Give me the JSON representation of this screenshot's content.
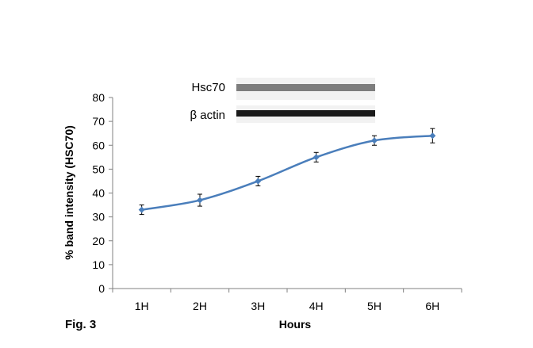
{
  "figure_label": "Fig. 3",
  "blot": {
    "band_labels": [
      "Hsc70",
      "β actin"
    ]
  },
  "colors": {
    "series": "#4a7ebb",
    "marker": "#4a7ebb",
    "axis": "#808080",
    "error_bar": "#000000",
    "blot_band": "#1a1a1a"
  },
  "chart_data": {
    "type": "line",
    "title": "",
    "xlabel": "Hours",
    "ylabel": "% band intensity (HSC70)",
    "categories": [
      "1H",
      "2H",
      "3H",
      "4H",
      "5H",
      "6H"
    ],
    "series": [
      {
        "values": [
          33,
          37,
          45,
          55,
          62,
          64
        ],
        "errors": [
          2,
          2.5,
          2,
          2,
          2,
          3
        ]
      }
    ],
    "ylim": [
      0,
      80
    ],
    "yticks": [
      0,
      10,
      20,
      30,
      40,
      50,
      60,
      70,
      80
    ],
    "grid": false,
    "legend": "none"
  }
}
